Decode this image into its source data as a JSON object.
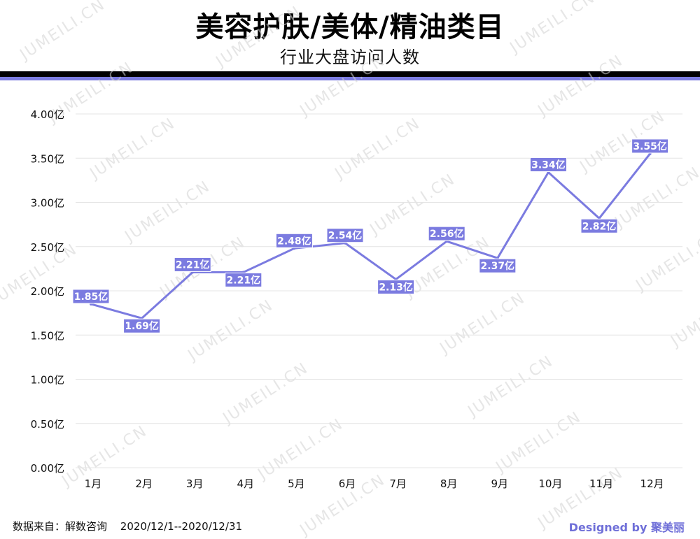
{
  "header": {
    "title": "美容护肤/美体/精油类目",
    "subtitle": "行业大盘访问人数"
  },
  "footer": {
    "source_label": "数据来自：解数咨询",
    "date_range": "2020/12/1--2020/12/31",
    "credit": "Designed by 聚美丽"
  },
  "watermark_text": "JUMEILI.CN",
  "colors": {
    "accent": "#7b7be0",
    "line": "#7b7be0",
    "label_bg": "#7b7be0",
    "label_text": "#ffffff",
    "grid": "#e4e4e4",
    "axis_text": "#111111",
    "credit": "#6f6fd8"
  },
  "chart_data": {
    "type": "line",
    "categories": [
      "1月",
      "2月",
      "3月",
      "4月",
      "5月",
      "6月",
      "7月",
      "8月",
      "9月",
      "10月",
      "11月",
      "12月"
    ],
    "values": [
      1.85,
      1.69,
      2.21,
      2.21,
      2.48,
      2.54,
      2.13,
      2.56,
      2.37,
      3.34,
      2.82,
      3.55
    ],
    "data_labels": [
      "1.85亿",
      "1.69亿",
      "2.21亿",
      "2.21亿",
      "2.48亿",
      "2.54亿",
      "2.13亿",
      "2.56亿",
      "2.37亿",
      "3.34亿",
      "2.82亿",
      "3.55亿"
    ],
    "label_position": [
      "above",
      "below",
      "above",
      "below",
      "above",
      "above",
      "below",
      "above",
      "below",
      "above",
      "below",
      "above"
    ],
    "y_ticks": [
      0,
      0.5,
      1,
      1.5,
      2,
      2.5,
      3,
      3.5,
      4
    ],
    "y_tick_labels": [
      "0.00亿",
      "0.50亿",
      "1.00亿",
      "1.50亿",
      "2.00亿",
      "2.50亿",
      "3.00亿",
      "3.50亿",
      "4.00亿"
    ],
    "ylim": [
      0,
      4
    ],
    "grid": true,
    "legend": "none"
  }
}
